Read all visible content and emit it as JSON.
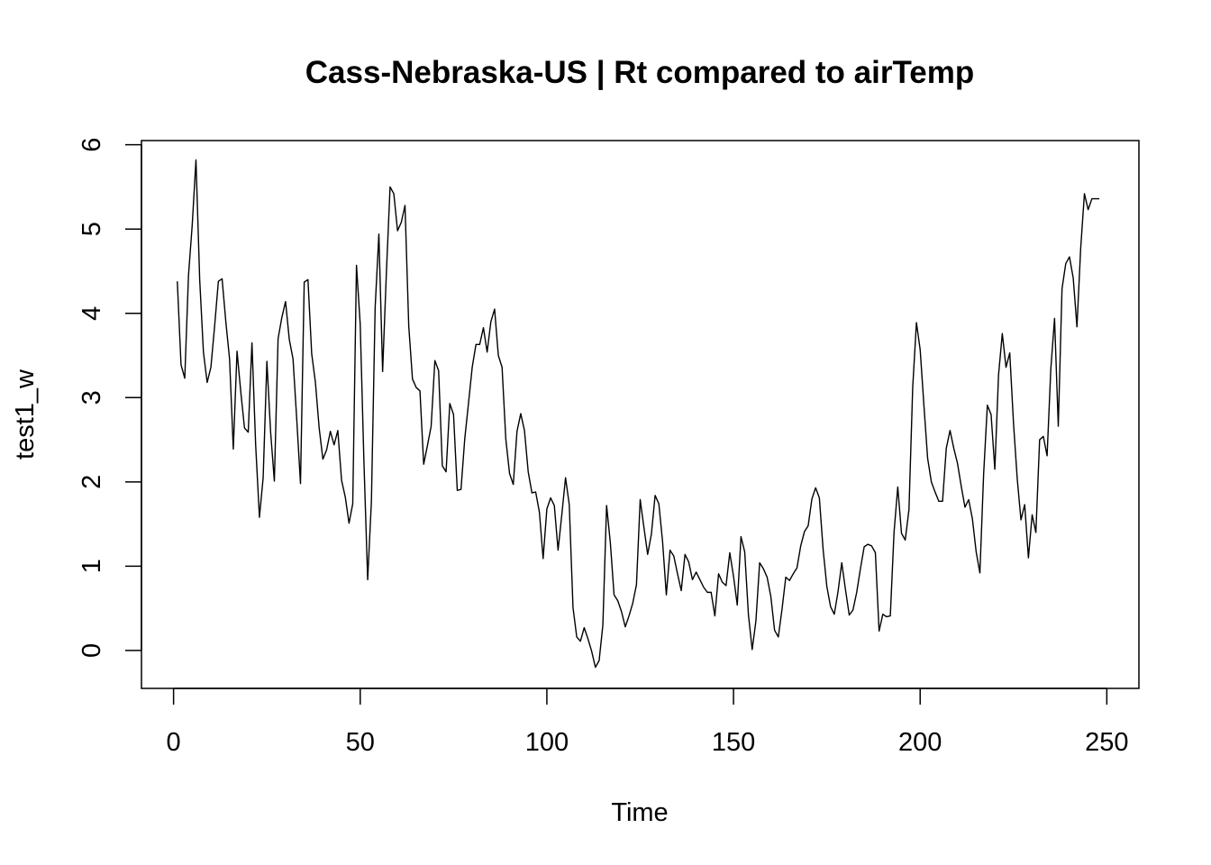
{
  "chart_data": {
    "type": "line",
    "title": "Cass-Nebraska-US | Rt compared to airTemp",
    "xlabel": "Time",
    "ylabel": "test1_w",
    "xlim": [
      -8.6,
      258.6
    ],
    "ylim": [
      -0.45,
      6.05
    ],
    "xticks": [
      0,
      50,
      100,
      150,
      200,
      250
    ],
    "yticks": [
      0,
      1,
      2,
      3,
      4,
      5,
      6
    ],
    "grid": false,
    "legend": "none",
    "series": [
      {
        "color": "#000000",
        "x": [
          1,
          2,
          3,
          4,
          5,
          6,
          7,
          8,
          9,
          10,
          11,
          12,
          13,
          14,
          15,
          16,
          17,
          18,
          19,
          20,
          21,
          22,
          23,
          24,
          25,
          26,
          27,
          28,
          29,
          30,
          31,
          32,
          33,
          34,
          35,
          36,
          37,
          38,
          39,
          40,
          41,
          42,
          43,
          44,
          45,
          46,
          47,
          48,
          49,
          50,
          51,
          52,
          53,
          54,
          55,
          56,
          57,
          58,
          59,
          60,
          61,
          62,
          63,
          64,
          65,
          66,
          67,
          68,
          69,
          70,
          71,
          72,
          73,
          74,
          75,
          76,
          77,
          78,
          79,
          80,
          81,
          82,
          83,
          84,
          85,
          86,
          87,
          88,
          89,
          90,
          91,
          92,
          93,
          94,
          95,
          96,
          97,
          98,
          99,
          100,
          101,
          102,
          103,
          104,
          105,
          106,
          107,
          108,
          109,
          110,
          111,
          112,
          113,
          114,
          115,
          116,
          117,
          118,
          119,
          120,
          121,
          122,
          123,
          124,
          125,
          126,
          127,
          128,
          129,
          130,
          131,
          132,
          133,
          134,
          135,
          136,
          137,
          138,
          139,
          140,
          141,
          142,
          143,
          144,
          145,
          146,
          147,
          148,
          149,
          150,
          151,
          152,
          153,
          154,
          155,
          156,
          157,
          158,
          159,
          160,
          161,
          162,
          163,
          164,
          165,
          166,
          167,
          168,
          169,
          170,
          171,
          172,
          173,
          174,
          175,
          176,
          177,
          178,
          179,
          180,
          181,
          182,
          183,
          184,
          185,
          186,
          187,
          188,
          189,
          190,
          191,
          192,
          193,
          194,
          195,
          196,
          197,
          198,
          199,
          200,
          201,
          202,
          203,
          204,
          205,
          206,
          207,
          208,
          209,
          210,
          211,
          212,
          213,
          214,
          215,
          216,
          217,
          218,
          219,
          220,
          221,
          222,
          223,
          224,
          225,
          226,
          227,
          228,
          229,
          230,
          231,
          232,
          233,
          234,
          235,
          236,
          237,
          238,
          239,
          240,
          241,
          242,
          243,
          244,
          245,
          246,
          247,
          248
        ],
        "y": [
          4.38,
          3.39,
          3.23,
          4.45,
          5.05,
          5.82,
          4.4,
          3.54,
          3.18,
          3.36,
          3.85,
          4.38,
          4.41,
          3.9,
          3.46,
          2.39,
          3.55,
          3.07,
          2.64,
          2.59,
          3.65,
          2.43,
          1.58,
          2.05,
          3.43,
          2.59,
          2.01,
          3.7,
          3.95,
          4.14,
          3.69,
          3.46,
          2.74,
          1.98,
          4.37,
          4.4,
          3.52,
          3.18,
          2.64,
          2.27,
          2.38,
          2.6,
          2.44,
          2.61,
          2.02,
          1.82,
          1.51,
          1.74,
          4.57,
          3.87,
          2.23,
          0.84,
          1.77,
          4.07,
          4.94,
          3.31,
          4.47,
          5.5,
          5.42,
          4.98,
          5.08,
          5.28,
          3.85,
          3.22,
          3.12,
          3.08,
          2.21,
          2.43,
          2.66,
          3.44,
          3.32,
          2.19,
          2.12,
          2.93,
          2.8,
          1.9,
          1.91,
          2.51,
          2.93,
          3.36,
          3.63,
          3.63,
          3.83,
          3.54,
          3.9,
          4.05,
          3.5,
          3.36,
          2.51,
          2.1,
          1.97,
          2.6,
          2.81,
          2.61,
          2.12,
          1.87,
          1.88,
          1.64,
          1.09,
          1.68,
          1.81,
          1.72,
          1.19,
          1.61,
          2.05,
          1.73,
          0.51,
          0.16,
          0.11,
          0.27,
          0.14,
          -0.01,
          -0.2,
          -0.12,
          0.3,
          1.72,
          1.28,
          0.66,
          0.59,
          0.46,
          0.28,
          0.41,
          0.56,
          0.78,
          1.79,
          1.46,
          1.14,
          1.38,
          1.84,
          1.74,
          1.29,
          0.66,
          1.19,
          1.12,
          0.91,
          0.71,
          1.14,
          1.05,
          0.84,
          0.93,
          0.84,
          0.75,
          0.69,
          0.69,
          0.41,
          0.91,
          0.81,
          0.77,
          1.16,
          0.88,
          0.54,
          1.35,
          1.17,
          0.42,
          0.01,
          0.35,
          1.04,
          0.97,
          0.87,
          0.64,
          0.24,
          0.16,
          0.49,
          0.87,
          0.83,
          0.91,
          0.98,
          1.24,
          1.41,
          1.48,
          1.8,
          1.93,
          1.81,
          1.2,
          0.76,
          0.52,
          0.43,
          0.7,
          1.04,
          0.72,
          0.42,
          0.48,
          0.69,
          0.97,
          1.23,
          1.26,
          1.24,
          1.16,
          0.23,
          0.43,
          0.4,
          0.41,
          1.4,
          1.94,
          1.39,
          1.31,
          1.67,
          3.12,
          3.89,
          3.57,
          2.91,
          2.28,
          2.0,
          1.88,
          1.77,
          1.77,
          2.4,
          2.61,
          2.4,
          2.22,
          1.95,
          1.7,
          1.79,
          1.56,
          1.17,
          0.92,
          2.09,
          2.91,
          2.8,
          2.15,
          3.27,
          3.76,
          3.36,
          3.53,
          2.7,
          2.04,
          1.55,
          1.73,
          1.1,
          1.61,
          1.4,
          2.5,
          2.54,
          2.31,
          3.34,
          3.94,
          2.66,
          4.29,
          4.59,
          4.67,
          4.42,
          3.84,
          4.77,
          5.42,
          5.23,
          5.36,
          5.36,
          5.36
        ]
      }
    ]
  }
}
